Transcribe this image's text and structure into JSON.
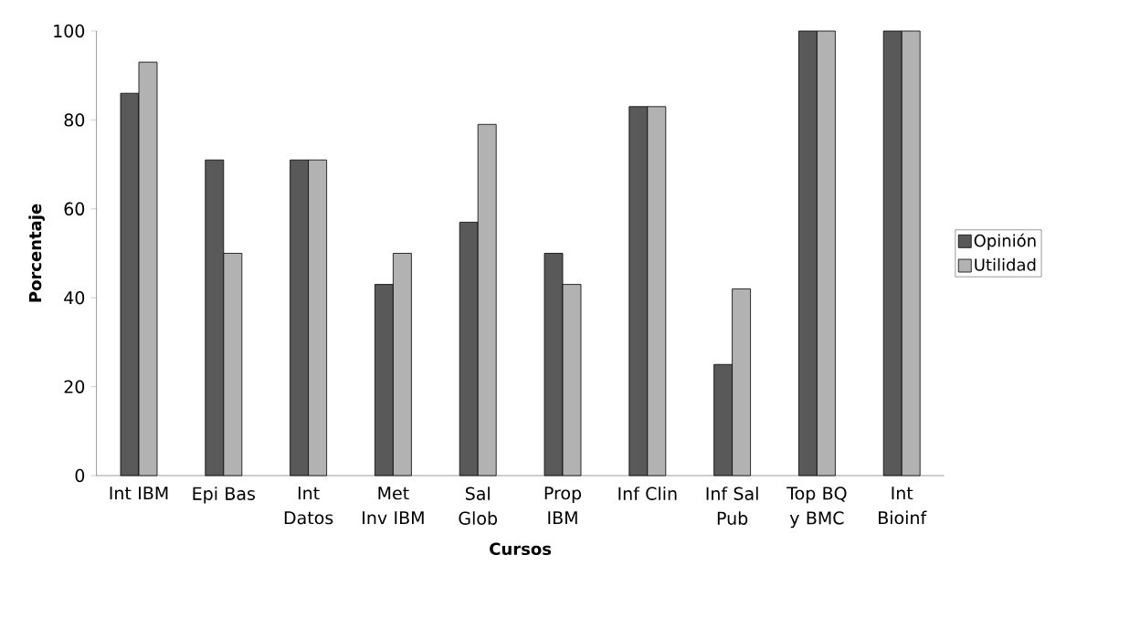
{
  "chart_data": {
    "type": "bar",
    "xlabel": "Cursos",
    "ylabel": "Porcentaje",
    "categories": [
      "Int IBM",
      "Epi Bas",
      "Int Datos",
      "Met Inv IBM",
      "Sal Glob",
      "Prop IBM",
      "Inf Clin",
      "Inf Sal Pub",
      "Top BQ y BMC",
      "Int Bioinf"
    ],
    "series": [
      {
        "name": "Opinión",
        "color": "#595959",
        "values": [
          86,
          71,
          71,
          43,
          57,
          50,
          83,
          25,
          100,
          100
        ]
      },
      {
        "name": "Utilidad",
        "color": "#b2b2b2",
        "values": [
          93,
          50,
          71,
          50,
          79,
          43,
          83,
          42,
          100,
          100
        ]
      }
    ],
    "ylim": [
      0,
      100
    ],
    "yticks": [
      0,
      20,
      40,
      60,
      80,
      100
    ],
    "grid": false,
    "legend": "right"
  }
}
